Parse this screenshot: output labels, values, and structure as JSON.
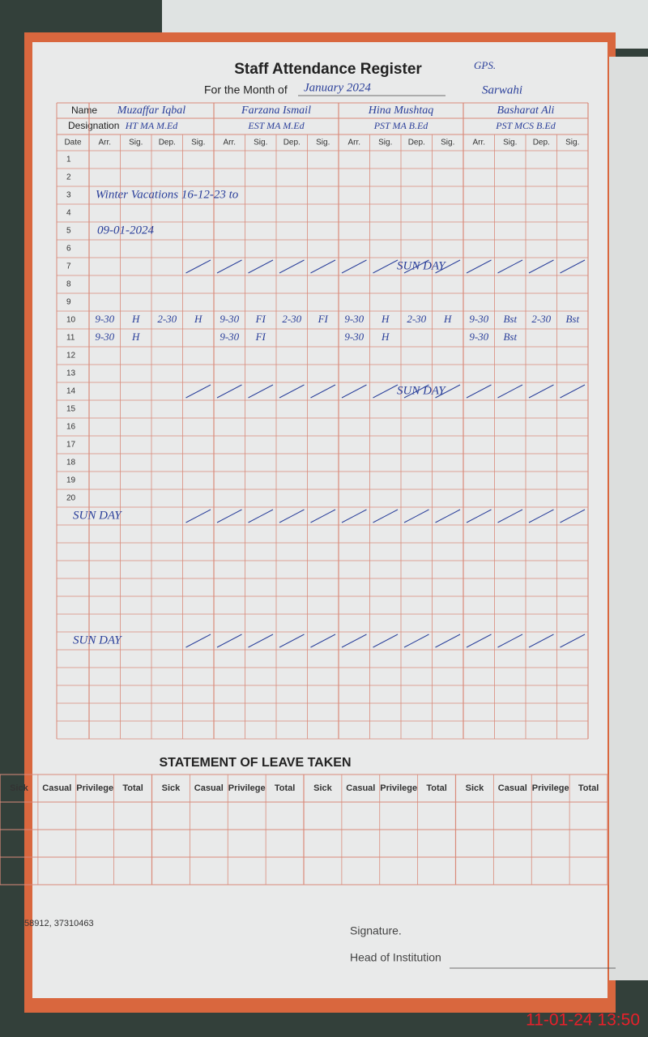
{
  "header": {
    "title": "Staff Attendance Register",
    "stamp": "GPS.",
    "month_label": "For the Month of",
    "month": "January 2024",
    "school": "Sarwahi",
    "name_label": "Name",
    "designation_label": "Designation"
  },
  "staff": [
    {
      "name": "Muzaffar Iqbal",
      "designation": "HT MA M.Ed"
    },
    {
      "name": "Farzana Ismail",
      "designation": "EST MA M.Ed"
    },
    {
      "name": "Hina Mushtaq",
      "designation": "PST MA B.Ed"
    },
    {
      "name": "Basharat Ali",
      "designation": "PST MCS B.Ed"
    }
  ],
  "date_header": "Date",
  "column_headers": [
    "Arr.",
    "Sig.",
    "Dep.",
    "Sig."
  ],
  "rows": [
    {
      "date": 1
    },
    {
      "date": 2
    },
    {
      "date": 3,
      "note": "Winter Vacations 16-12-23 to"
    },
    {
      "date": 4
    },
    {
      "date": 5,
      "note": "09-01-2024"
    },
    {
      "date": 6
    },
    {
      "date": 7,
      "note": "SUN DAY"
    },
    {
      "date": 8
    },
    {
      "date": 9
    },
    {
      "date": 10,
      "cells": [
        "9-30",
        "H",
        "2-30",
        "H",
        "9-30",
        "FI",
        "2-30",
        "FI",
        "9-30",
        "H",
        "2-30",
        "H",
        "9-30",
        "Bst",
        "2-30",
        "Bst"
      ]
    },
    {
      "date": 11,
      "cells": [
        "9-30",
        "H",
        null,
        null,
        "9-30",
        "FI",
        null,
        null,
        "9-30",
        "H",
        null,
        null,
        "9-30",
        "Bst",
        null,
        null
      ]
    },
    {
      "date": 12
    },
    {
      "date": 13
    },
    {
      "date": 14,
      "note": "SUN DAY"
    },
    {
      "date": 15
    },
    {
      "date": 16
    },
    {
      "date": 17
    },
    {
      "date": 18
    },
    {
      "date": 19
    },
    {
      "date": 20
    }
  ],
  "later_sundays": [
    "SUN DAY",
    "SUN DAY"
  ],
  "leave": {
    "title": "STATEMENT OF LEAVE TAKEN",
    "headers": [
      "Sick",
      "Casual",
      "Privilege",
      "Total"
    ]
  },
  "footer": {
    "phone": "58912, 37310463",
    "signature": "Signature.",
    "head": "Head of Institution",
    "timestamp": "11-01-24  13:50"
  }
}
